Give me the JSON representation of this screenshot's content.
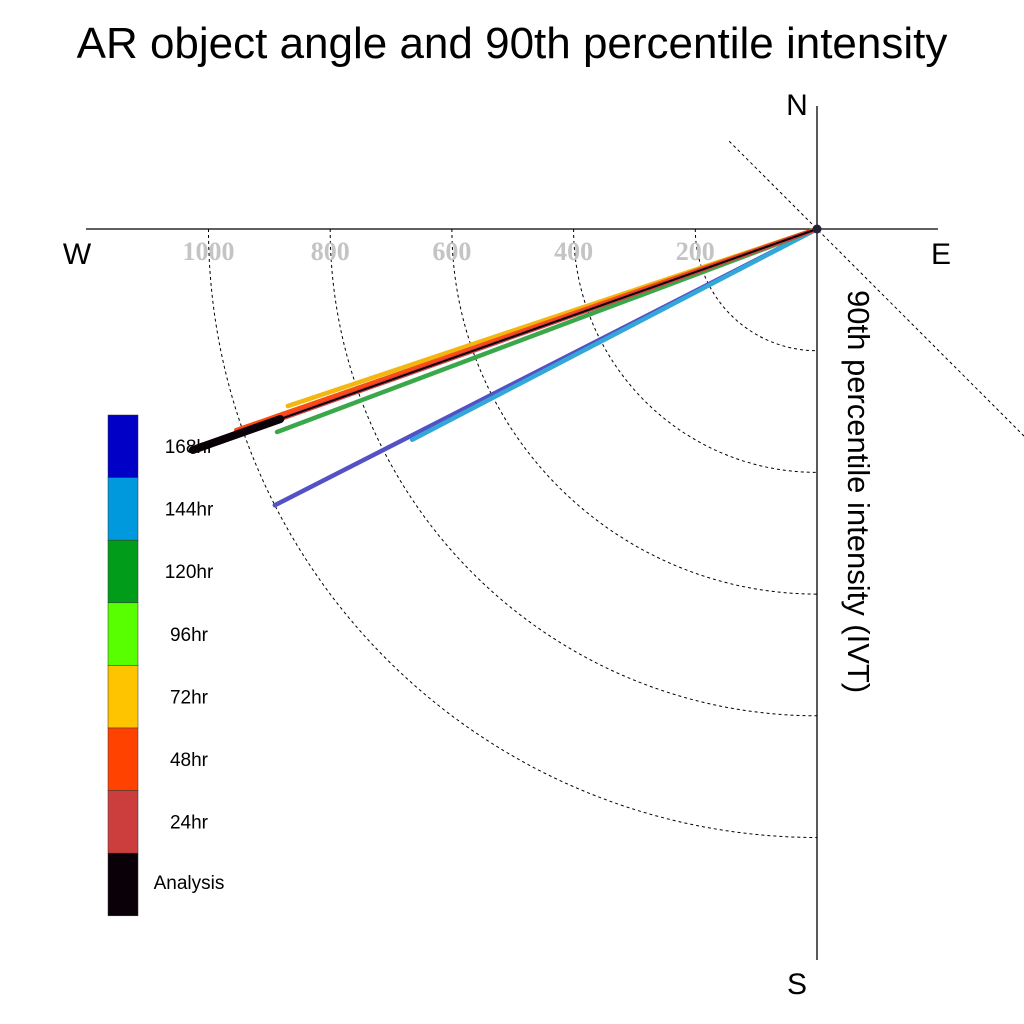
{
  "chart_data": {
    "type": "polar-vector",
    "title": "AR object angle and 90th percentile intensity",
    "radial_label": "90th percentile intensity (IVT)",
    "compass": {
      "north": "N",
      "south": "S",
      "east": "E",
      "west": "W"
    },
    "radial_ticks": [
      200,
      400,
      600,
      800,
      1000
    ],
    "radial_tick_labels": [
      "200",
      "400",
      "600",
      "800",
      "1000"
    ],
    "r_max": 1200,
    "angle_reference_deg": [
      -45
    ],
    "series": [
      {
        "name": "168hr",
        "color": "#5252c6",
        "angle_deg": 207.0,
        "intensity": 1000
      },
      {
        "name": "144hr",
        "color": "#33a8d8",
        "angle_deg": 207.5,
        "intensity": 750
      },
      {
        "name": "120hr",
        "color": "#3aa84a",
        "angle_deg": 200.6,
        "intensity": 948
      },
      {
        "name": "96hr",
        "color": "#58d821",
        "angle_deg": 199.1,
        "intensity": 948
      },
      {
        "name": "72hr",
        "color": "#f2b80f",
        "angle_deg": 198.5,
        "intensity": 917
      },
      {
        "name": "48hr",
        "color": "#ff4a14",
        "angle_deg": 199.1,
        "intensity": 1010
      },
      {
        "name": "24hr",
        "color": "#d64242",
        "angle_deg": 199.5,
        "intensity": 988
      },
      {
        "name": "Analysis",
        "color": "#0a0008",
        "angle_deg": 199.5,
        "intensity": 1088
      }
    ],
    "legend": [
      {
        "label": "168hr",
        "color": "#0000c6"
      },
      {
        "label": "144hr",
        "color": "#0099de"
      },
      {
        "label": "120hr",
        "color": "#009c1a"
      },
      {
        "label": "96hr",
        "color": "#57ff00"
      },
      {
        "label": "72hr",
        "color": "#ffc400"
      },
      {
        "label": "48hr",
        "color": "#ff4200"
      },
      {
        "label": "24hr",
        "color": "#cc3d3d"
      },
      {
        "label": "Analysis",
        "color": "#0a0008"
      }
    ]
  }
}
